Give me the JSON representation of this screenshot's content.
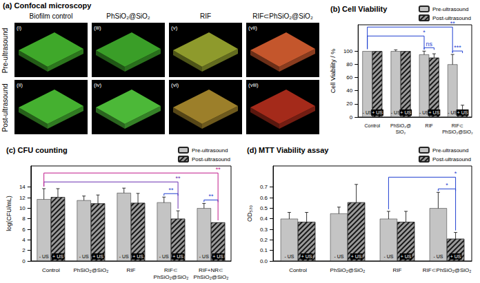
{
  "microscopy": {
    "title": "(a) Confocal microscopy",
    "columns": [
      "Biofilm control",
      "PhSiO₂@SiO₂",
      "RIF",
      "RIF⊂PhSiO₂@SiO₂"
    ],
    "rows": [
      "Pre-ultrasound",
      "Post-ultrasound"
    ],
    "images": [
      [
        {
          "label": "(i)",
          "color": "#3fa82a"
        },
        {
          "label": "(iii)",
          "color": "#3a9e28"
        },
        {
          "label": "(v)",
          "color": "#8e9a2c"
        },
        {
          "label": "(vii)",
          "color": "#c4562c"
        }
      ],
      [
        {
          "label": "(ii)",
          "color": "#45b030"
        },
        {
          "label": "(iv)",
          "color": "#4cb838"
        },
        {
          "label": "(vi)",
          "color": "#9c7f2a"
        },
        {
          "label": "(viii)",
          "color": "#a42a1a"
        }
      ]
    ]
  },
  "chart_data": [
    {
      "type": "bar",
      "title": "(b) Cell Viability",
      "y_label": "Cell Viability / %",
      "categories": [
        "Control",
        "PhSiO₂@SiO₂",
        "RIF",
        "RIF⊂PhSiO₂@SiO₂"
      ],
      "series": [
        {
          "name": "Pre-ultrasound",
          "annotation": "- US",
          "color": "#c4c4c4",
          "values": [
            100,
            100,
            95,
            80
          ],
          "errors": [
            0,
            2,
            5,
            15
          ]
        },
        {
          "name": "Post-ultrasound",
          "annotation": "+ US",
          "color": "#9a9a9a",
          "values": [
            100,
            100,
            90,
            10
          ],
          "errors": [
            0,
            0,
            6,
            8
          ]
        }
      ],
      "ylim": [
        0,
        140
      ],
      "yticks": [
        0,
        20,
        40,
        60,
        80,
        100
      ],
      "grid": false,
      "legend": "top-right",
      "comparisons": [
        {
          "text": "ns",
          "from": {
            "category": "RIF",
            "series": "Pre-ultrasound"
          },
          "to": {
            "category": "RIF",
            "series": "Post-ultrasound"
          },
          "color": "#1f3fd1"
        },
        {
          "text": "***",
          "from": {
            "category": "RIF⊂PhSiO₂@SiO₂",
            "series": "Pre-ultrasound"
          },
          "to": {
            "category": "RIF⊂PhSiO₂@SiO₂",
            "series": "Post-ultrasound"
          },
          "color": "#1f3fd1"
        },
        {
          "text": "*",
          "from": {
            "category": "Control",
            "series": "Pre-ultrasound"
          },
          "to": {
            "category": "RIF",
            "series": "Pre-ultrasound"
          },
          "color": "#1f3fd1"
        },
        {
          "text": "**",
          "from": {
            "category": "Control",
            "series": "Pre-ultrasound"
          },
          "to": {
            "category": "RIF⊂PhSiO₂@SiO₂",
            "series": "Pre-ultrasound"
          },
          "color": "#1f3fd1"
        }
      ]
    },
    {
      "type": "bar",
      "title": "(c) CFU counting",
      "y_label": "log(CFU/mL)",
      "categories": [
        "Control",
        "PhSiO₂@SiO₂",
        "RIF",
        "RIF⊂PhSiO₂@SiO₂",
        "RIF+NR⊂PhSiO₂@SiO₂"
      ],
      "series": [
        {
          "name": "Pre-ultrasound",
          "annotation": "- US",
          "color": "#c4c4c4",
          "values": [
            11.7,
            11.5,
            12.9,
            11.1,
            10.0
          ],
          "errors": [
            2.0,
            0.8,
            0.9,
            1.0,
            0.9
          ]
        },
        {
          "name": "Post-ultrasound",
          "annotation": "+ US",
          "color": "#9a9a9a",
          "values": [
            12.1,
            10.9,
            11.0,
            8.0,
            7.3
          ],
          "errors": [
            1.6,
            1.6,
            1.8,
            1.5,
            0
          ]
        }
      ],
      "ylim": [
        0,
        18
      ],
      "yticks": [
        0,
        2,
        4,
        6,
        8,
        10,
        12,
        14
      ],
      "grid": false,
      "legend": "top-right",
      "comparisons": [
        {
          "text": "**",
          "from": {
            "category": "RIF⊂PhSiO₂@SiO₂",
            "series": "Pre-ultrasound"
          },
          "to": {
            "category": "RIF⊂PhSiO₂@SiO₂",
            "series": "Post-ultrasound"
          },
          "color": "#1f3fd1"
        },
        {
          "text": "**",
          "from": {
            "category": "RIF+NR⊂PhSiO₂@SiO₂",
            "series": "Pre-ultrasound"
          },
          "to": {
            "category": "RIF+NR⊂PhSiO₂@SiO₂",
            "series": "Post-ultrasound"
          },
          "color": "#1f3fd1"
        },
        {
          "text": "**",
          "from": {
            "category": "Control",
            "series": "Pre-ultrasound"
          },
          "to": {
            "category": "RIF⊂PhSiO₂@SiO₂",
            "series": "Post-ultrasound"
          },
          "color": "#6a2fb0"
        },
        {
          "text": "**",
          "from": {
            "category": "Control",
            "series": "Pre-ultrasound"
          },
          "to": {
            "category": "RIF+NR⊂PhSiO₂@SiO₂",
            "series": "Post-ultrasound"
          },
          "color": "#c0188a"
        }
      ]
    },
    {
      "type": "bar",
      "title": "(d) MTT Viability assay",
      "y_label": "OD₅₇₀",
      "categories": [
        "Control",
        "PhSiO₂@SiO₂",
        "RIF",
        "RIF⊂PhSiO₂@SiO₂"
      ],
      "series": [
        {
          "name": "Pre-ultrasound",
          "annotation": "- US",
          "color": "#c4c4c4",
          "values": [
            0.4,
            0.45,
            0.4,
            0.5
          ],
          "errors": [
            0.06,
            0.06,
            0.07,
            0.15
          ]
        },
        {
          "name": "Post-ultrasound",
          "annotation": "+ US",
          "color": "#9a9a9a",
          "values": [
            0.37,
            0.555,
            0.37,
            0.21
          ],
          "errors": [
            0.09,
            0.17,
            0.1,
            0.06
          ]
        }
      ],
      "ylim": [
        0,
        0.9
      ],
      "yticks": [
        {
          "value": 0,
          "label": "0.0"
        },
        0.1,
        0.2,
        0.3,
        0.4,
        0.5,
        0.6,
        0.7
      ],
      "grid": false,
      "legend": "top-right",
      "comparisons": [
        {
          "text": "*",
          "from": {
            "category": "RIF⊂PhSiO₂@SiO₂",
            "series": "Pre-ultrasound"
          },
          "to": {
            "category": "RIF⊂PhSiO₂@SiO₂",
            "series": "Post-ultrasound"
          },
          "color": "#1f3fd1"
        },
        {
          "text": "*",
          "from": {
            "category": "RIF",
            "series": "Pre-ultrasound"
          },
          "to": {
            "category": "RIF⊂PhSiO₂@SiO₂",
            "series": "Post-ultrasound"
          },
          "color": "#1f3fd1"
        }
      ]
    }
  ]
}
